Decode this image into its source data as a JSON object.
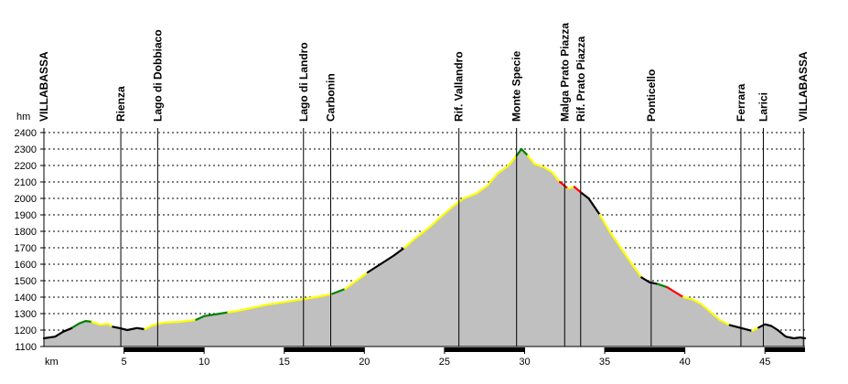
{
  "chart_data": {
    "type": "area",
    "title": "",
    "xlabel": "km",
    "ylabel": "hm",
    "xlim": [
      0,
      47.5
    ],
    "ylim": [
      1100,
      2400
    ],
    "x_ticks": [
      5,
      10,
      15,
      20,
      25,
      30,
      35,
      40,
      45
    ],
    "y_ticks": [
      1100,
      1200,
      1300,
      1400,
      1500,
      1600,
      1700,
      1800,
      1900,
      2000,
      2100,
      2200,
      2300,
      2400
    ],
    "grid": true,
    "fill_color": "#c0c0c0",
    "segment_colors": {
      "black": "#000000",
      "green": "#008000",
      "yellow": "#ffff00",
      "red": "#ff0000"
    },
    "profile": [
      [
        0,
        1150
      ],
      [
        0.7,
        1160
      ],
      [
        1.2,
        1190
      ],
      [
        1.7,
        1210
      ],
      [
        2.2,
        1240
      ],
      [
        2.6,
        1255
      ],
      [
        3.0,
        1250
      ],
      [
        3.5,
        1232
      ],
      [
        4.0,
        1238
      ],
      [
        4.3,
        1220
      ],
      [
        4.8,
        1210
      ],
      [
        5.2,
        1200
      ],
      [
        5.8,
        1212
      ],
      [
        6.3,
        1205
      ],
      [
        6.8,
        1230
      ],
      [
        7.5,
        1245
      ],
      [
        8.5,
        1250
      ],
      [
        9.5,
        1262
      ],
      [
        10.0,
        1285
      ],
      [
        11.0,
        1300
      ],
      [
        12.0,
        1315
      ],
      [
        13.0,
        1335
      ],
      [
        14.0,
        1355
      ],
      [
        15.0,
        1370
      ],
      [
        16.0,
        1385
      ],
      [
        17.0,
        1400
      ],
      [
        18.0,
        1420
      ],
      [
        18.8,
        1450
      ],
      [
        19.5,
        1500
      ],
      [
        20.2,
        1550
      ],
      [
        21.0,
        1600
      ],
      [
        21.8,
        1650
      ],
      [
        22.5,
        1700
      ],
      [
        23.2,
        1760
      ],
      [
        24.0,
        1820
      ],
      [
        24.8,
        1890
      ],
      [
        25.5,
        1950
      ],
      [
        26.2,
        2000
      ],
      [
        27.0,
        2030
      ],
      [
        27.7,
        2080
      ],
      [
        28.3,
        2150
      ],
      [
        29.0,
        2200
      ],
      [
        29.5,
        2260
      ],
      [
        29.8,
        2300
      ],
      [
        30.2,
        2260
      ],
      [
        30.6,
        2210
      ],
      [
        31.2,
        2190
      ],
      [
        31.7,
        2160
      ],
      [
        32.2,
        2100
      ],
      [
        32.7,
        2060
      ],
      [
        33.1,
        2070
      ],
      [
        33.6,
        2030
      ],
      [
        34.0,
        2000
      ],
      [
        34.7,
        1900
      ],
      [
        35.3,
        1800
      ],
      [
        36.0,
        1700
      ],
      [
        36.7,
        1600
      ],
      [
        37.3,
        1520
      ],
      [
        37.8,
        1490
      ],
      [
        38.3,
        1480
      ],
      [
        38.9,
        1460
      ],
      [
        39.4,
        1430
      ],
      [
        39.9,
        1400
      ],
      [
        40.4,
        1390
      ],
      [
        41.0,
        1360
      ],
      [
        41.6,
        1310
      ],
      [
        42.2,
        1260
      ],
      [
        42.8,
        1230
      ],
      [
        43.6,
        1210
      ],
      [
        44.2,
        1195
      ],
      [
        44.6,
        1215
      ],
      [
        45.0,
        1235
      ],
      [
        45.4,
        1225
      ],
      [
        45.8,
        1200
      ],
      [
        46.3,
        1160
      ],
      [
        46.8,
        1150
      ],
      [
        47.2,
        1155
      ],
      [
        47.5,
        1150
      ]
    ],
    "segments": [
      {
        "from": 0,
        "to": 1.8,
        "color": "black"
      },
      {
        "from": 1.8,
        "to": 3.0,
        "color": "green"
      },
      {
        "from": 3.0,
        "to": 4.3,
        "color": "yellow"
      },
      {
        "from": 4.3,
        "to": 6.3,
        "color": "black"
      },
      {
        "from": 6.3,
        "to": 9.5,
        "color": "yellow"
      },
      {
        "from": 9.5,
        "to": 11.5,
        "color": "green"
      },
      {
        "from": 11.5,
        "to": 18.0,
        "color": "yellow"
      },
      {
        "from": 18.0,
        "to": 18.8,
        "color": "green"
      },
      {
        "from": 18.8,
        "to": 20.2,
        "color": "yellow"
      },
      {
        "from": 20.2,
        "to": 22.5,
        "color": "black"
      },
      {
        "from": 22.5,
        "to": 28.3,
        "color": "yellow"
      },
      {
        "from": 28.3,
        "to": 29.5,
        "color": "yellow"
      },
      {
        "from": 29.5,
        "to": 30.2,
        "color": "green"
      },
      {
        "from": 30.2,
        "to": 32.2,
        "color": "yellow"
      },
      {
        "from": 32.2,
        "to": 32.7,
        "color": "red"
      },
      {
        "from": 32.7,
        "to": 33.1,
        "color": "yellow"
      },
      {
        "from": 33.1,
        "to": 33.6,
        "color": "red"
      },
      {
        "from": 33.6,
        "to": 34.7,
        "color": "black"
      },
      {
        "from": 34.7,
        "to": 37.3,
        "color": "yellow"
      },
      {
        "from": 37.3,
        "to": 38.3,
        "color": "black"
      },
      {
        "from": 38.3,
        "to": 38.9,
        "color": "green"
      },
      {
        "from": 38.9,
        "to": 39.9,
        "color": "red"
      },
      {
        "from": 39.9,
        "to": 42.8,
        "color": "yellow"
      },
      {
        "from": 42.8,
        "to": 44.2,
        "color": "black"
      },
      {
        "from": 44.2,
        "to": 44.6,
        "color": "yellow"
      },
      {
        "from": 44.6,
        "to": 47.5,
        "color": "black"
      }
    ],
    "waypoints": [
      {
        "name": "VILLABASSA",
        "km": 0
      },
      {
        "name": "Rienza",
        "km": 4.8
      },
      {
        "name": "Lago di Dobbiaco",
        "km": 7.1
      },
      {
        "name": "Lago di Landro",
        "km": 16.2
      },
      {
        "name": "Carbonin",
        "km": 17.9
      },
      {
        "name": "Rif. Vallandro",
        "km": 25.9
      },
      {
        "name": "Monte Specie",
        "km": 29.5
      },
      {
        "name": "Malga Prato Piazza",
        "km": 32.5
      },
      {
        "name": "Rif. Prato Piazza",
        "km": 33.5
      },
      {
        "name": "Ponticello",
        "km": 37.9
      },
      {
        "name": "Ferrara",
        "km": 43.5
      },
      {
        "name": "Larici",
        "km": 44.9
      },
      {
        "name": "VILLABASSA",
        "km": 47.4
      }
    ],
    "km_bar_dark_ranges": [
      [
        5,
        10
      ],
      [
        15,
        20
      ],
      [
        25,
        30
      ],
      [
        35,
        40
      ],
      [
        45,
        47.5
      ]
    ]
  }
}
